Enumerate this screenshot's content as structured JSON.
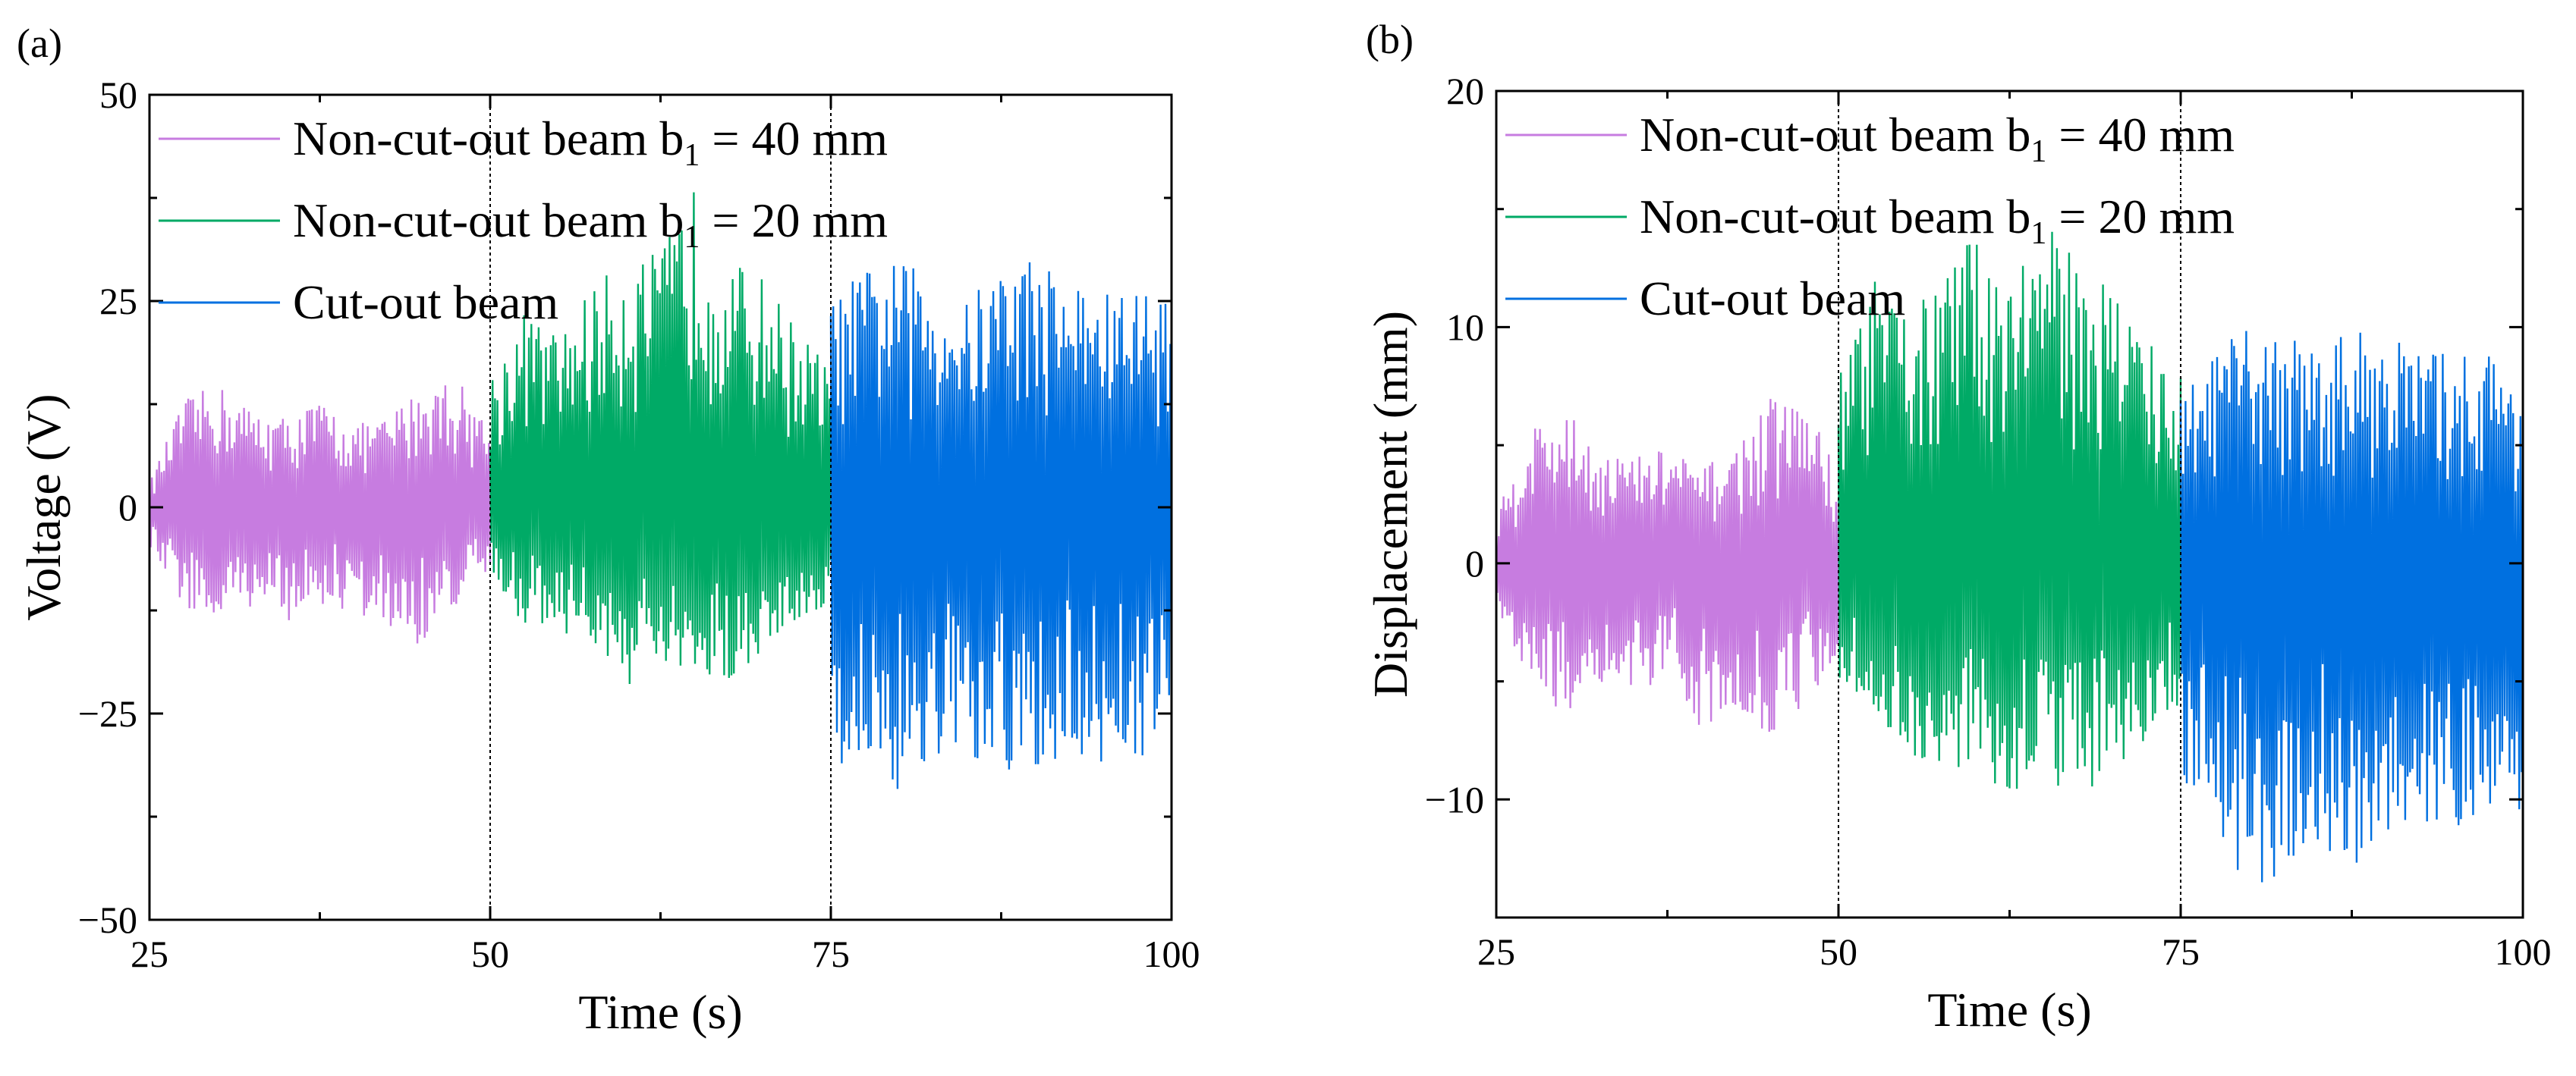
{
  "chart_data": [
    {
      "type": "line",
      "panel_label": "(a)",
      "xlabel": "Time (s)",
      "ylabel": "Voltage (V)",
      "xlim": [
        25,
        100
      ],
      "ylim": [
        -50,
        50
      ],
      "xticks": [
        25,
        50,
        75,
        100
      ],
      "xtick_labels": [
        "25",
        "50",
        "75",
        "100"
      ],
      "yticks": [
        -50,
        -25,
        0,
        25,
        50
      ],
      "ytick_labels": [
        "−50",
        "−25",
        "0",
        "25",
        "50"
      ],
      "grid": false,
      "legend_position": "top-left",
      "divider_x": [
        50,
        75
      ],
      "series": [
        {
          "name": "Non-cut-out beam b1 = 40 mm",
          "legend_main": "Non-cut-out beam b",
          "legend_sub": "1",
          "legend_tail": " = 40 mm",
          "color": "#C77CE0",
          "x_range": [
            25,
            50
          ],
          "envelope_upper": [
            3,
            13,
            15,
            12,
            11,
            13,
            10,
            11,
            15,
            16,
            10
          ],
          "envelope_lower": [
            -5,
            -12,
            -15,
            -12,
            -14,
            -12,
            -13,
            -15,
            -17,
            -12,
            -8
          ]
        },
        {
          "name": "Non-cut-out beam b1 = 20 mm",
          "legend_main": "Non-cut-out beam b",
          "legend_sub": "1",
          "legend_tail": " = 20 mm",
          "color": "#00AA66",
          "x_range": [
            50,
            75
          ],
          "envelope_upper": [
            16,
            24,
            21,
            27,
            30,
            31,
            39,
            30,
            28,
            22,
            17
          ],
          "envelope_lower": [
            -10,
            -14,
            -15,
            -17,
            -22,
            -20,
            -23,
            -21,
            -18,
            -14,
            -12
          ]
        },
        {
          "name": "Cut-out beam",
          "legend_main": "Cut-out beam",
          "legend_sub": "",
          "legend_tail": "",
          "color": "#0070E0",
          "x_range": [
            75,
            100
          ],
          "envelope_upper": [
            25,
            29,
            30,
            28,
            25,
            30,
            31,
            28,
            26,
            27,
            26
          ],
          "envelope_lower": [
            -33,
            -30,
            -35,
            -31,
            -32,
            -34,
            -33,
            -30,
            -32,
            -30,
            -31
          ]
        }
      ]
    },
    {
      "type": "line",
      "panel_label": "(b)",
      "xlabel": "Time (s)",
      "ylabel": "Displacement (mm)",
      "xlim": [
        25,
        100
      ],
      "ylim": [
        -15,
        20
      ],
      "xticks": [
        25,
        50,
        75,
        100
      ],
      "xtick_labels": [
        "25",
        "50",
        "75",
        "100"
      ],
      "yticks": [
        -10,
        0,
        10,
        20
      ],
      "ytick_labels": [
        "−10",
        "0",
        "10",
        "20"
      ],
      "grid": false,
      "legend_position": "top-left",
      "divider_x": [
        50,
        75
      ],
      "series": [
        {
          "name": "Non-cut-out beam b1 = 40 mm",
          "legend_main": "Non-cut-out beam b",
          "legend_sub": "1",
          "legend_tail": " = 40 mm",
          "color": "#C77CE0",
          "x_range": [
            25,
            50
          ],
          "envelope_upper": [
            2,
            6,
            6.5,
            5,
            4.5,
            5,
            4,
            5,
            7,
            7,
            4
          ],
          "envelope_lower": [
            -2,
            -5,
            -6.5,
            -5,
            -6,
            -5,
            -7,
            -6,
            -7.5,
            -6,
            -4
          ]
        },
        {
          "name": "Non-cut-out beam b1 = 20 mm",
          "legend_main": "Non-cut-out beam b",
          "legend_sub": "1",
          "legend_tail": " = 20 mm",
          "color": "#00AA66",
          "x_range": [
            50,
            75
          ],
          "envelope_upper": [
            8,
            12,
            11,
            12,
            14,
            13,
            14.5,
            13,
            12,
            10,
            8
          ],
          "envelope_lower": [
            -5,
            -7,
            -8,
            -9,
            -9,
            -10,
            -9,
            -10,
            -9,
            -8,
            -6
          ]
        },
        {
          "name": "Cut-out beam",
          "legend_main": "Cut-out beam",
          "legend_sub": "",
          "legend_tail": "",
          "color": "#0070E0",
          "x_range": [
            75,
            100
          ],
          "envelope_upper": [
            7,
            9,
            10,
            10,
            9,
            10,
            10,
            9,
            9,
            9,
            8
          ],
          "envelope_lower": [
            -9,
            -12,
            -14,
            -13,
            -12,
            -13,
            -12,
            -12,
            -11,
            -12,
            -11
          ]
        }
      ]
    }
  ]
}
